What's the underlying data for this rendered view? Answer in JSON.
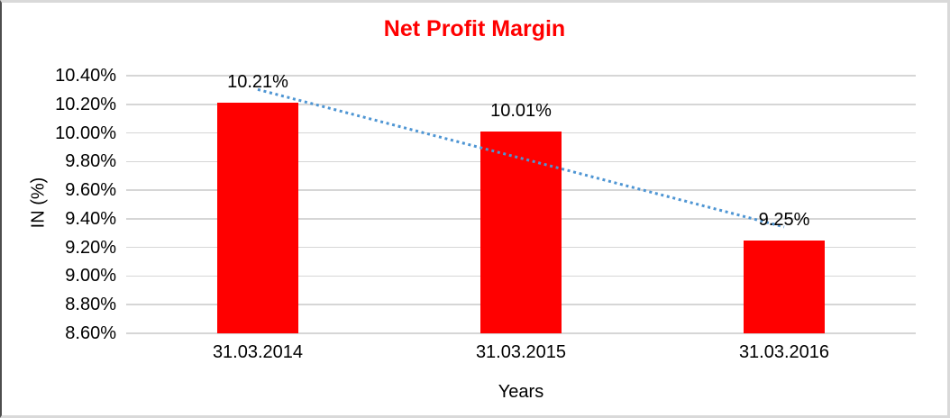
{
  "chart_data": {
    "type": "bar",
    "title": "Net Profit Margin",
    "title_color": "#FF0000",
    "xlabel": "Years",
    "ylabel": "IN (%)",
    "categories": [
      "31.03.2014",
      "31.03.2015",
      "31.03.2016"
    ],
    "values": [
      10.21,
      10.01,
      9.25
    ],
    "value_labels": [
      "10.21%",
      "10.01%",
      "9.25%"
    ],
    "ylim": [
      8.6,
      10.4
    ],
    "ytick_step": 0.2,
    "yticks": [
      {
        "value": 10.4,
        "label": "10.40%"
      },
      {
        "value": 10.2,
        "label": "10.20%"
      },
      {
        "value": 10.0,
        "label": "10.00%"
      },
      {
        "value": 9.8,
        "label": "9.80%"
      },
      {
        "value": 9.6,
        "label": "9.60%"
      },
      {
        "value": 9.4,
        "label": "9.40%"
      },
      {
        "value": 9.2,
        "label": "9.20%"
      },
      {
        "value": 9.0,
        "label": "9.00%"
      },
      {
        "value": 8.8,
        "label": "8.80%"
      },
      {
        "value": 8.6,
        "label": "8.60%"
      }
    ],
    "grid": true,
    "grid_color": "#D6D6D6",
    "bar_color": "#FF0000",
    "legend": "none",
    "trendline": {
      "type": "linear",
      "style": "dotted",
      "color": "#4E95D3"
    }
  }
}
